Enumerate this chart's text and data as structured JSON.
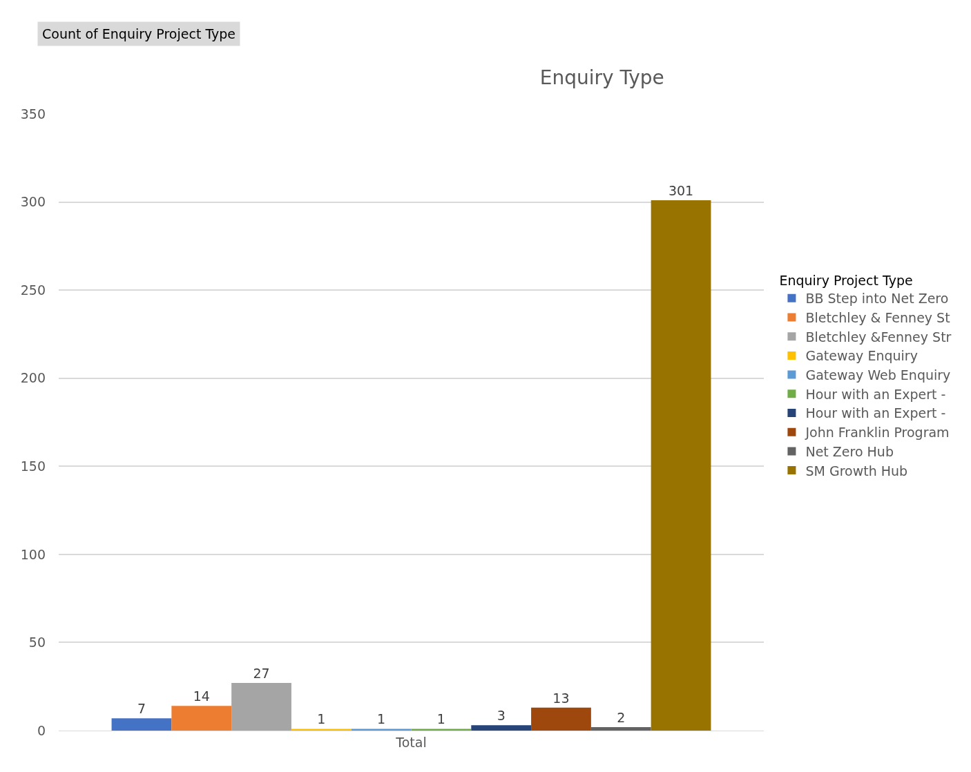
{
  "chart_data": {
    "type": "bar",
    "title": "Enquiry Type",
    "legend_title": "Enquiry Project Type",
    "annotations": [
      "Count of Enquiry Project Type"
    ],
    "categories": [
      "Total"
    ],
    "series": [
      {
        "name": "BB Step into Net Zero",
        "color": "#4472c4",
        "values": [
          7
        ]
      },
      {
        "name": "Bletchley & Fenney St",
        "color": "#ed7d31",
        "values": [
          14
        ]
      },
      {
        "name": "Bletchley &Fenney Str",
        "color": "#a5a5a5",
        "values": [
          27
        ]
      },
      {
        "name": "Gateway Enquiry",
        "color": "#ffc000",
        "values": [
          1
        ]
      },
      {
        "name": "Gateway Web Enquiry",
        "color": "#5b9bd5",
        "values": [
          1
        ]
      },
      {
        "name": "Hour with an Expert -",
        "color": "#70ad47",
        "values": [
          1
        ]
      },
      {
        "name": "Hour with an Expert -",
        "color": "#264478",
        "values": [
          3
        ]
      },
      {
        "name": "John Franklin Program",
        "color": "#9e480e",
        "values": [
          13
        ]
      },
      {
        "name": "Net Zero Hub",
        "color": "#636363",
        "values": [
          2
        ]
      },
      {
        "name": "SM Growth Hub",
        "color": "#997300",
        "values": [
          301
        ]
      }
    ],
    "ylim": [
      0,
      350
    ],
    "yticks": [
      0,
      50,
      100,
      150,
      200,
      250,
      300,
      350
    ],
    "grid": "y",
    "legend": "right",
    "data_labels": true
  }
}
